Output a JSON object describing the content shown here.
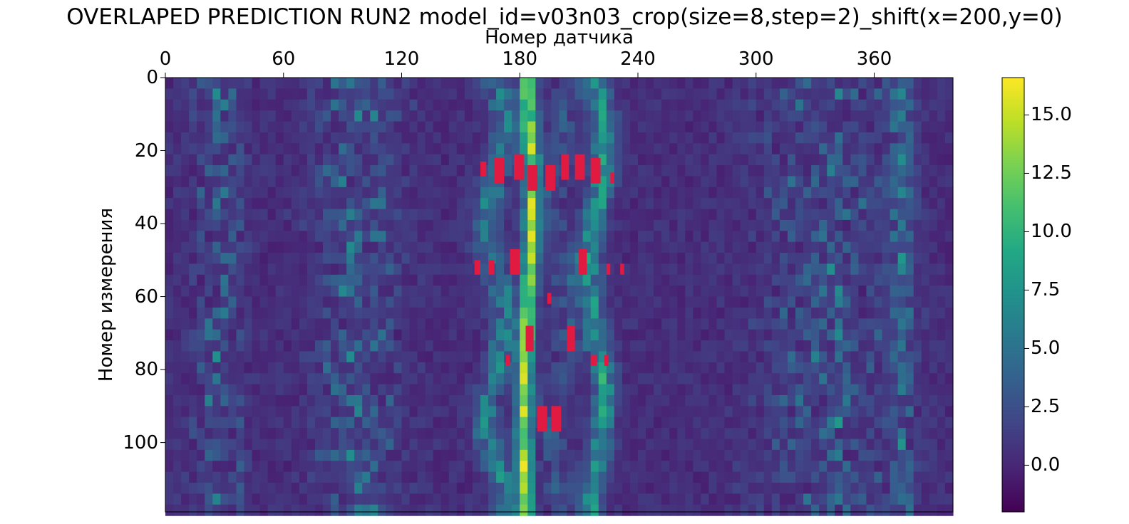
{
  "chart_data": {
    "type": "heatmap",
    "title": "OVERLAPED PREDICTION RUN2 model_id=v03n03_crop(size=8,step=2)_shift(x=200,y=0)",
    "xlabel": "Номер датчика",
    "ylabel": "Номер измерения",
    "x_axis_position": "top",
    "xlim": [
      0,
      400
    ],
    "ylim": [
      119,
      0
    ],
    "xticks": [
      0,
      60,
      120,
      180,
      240,
      300,
      360
    ],
    "yticks": [
      0,
      20,
      40,
      60,
      80,
      100
    ],
    "colorscale": "viridis",
    "colorbar": {
      "range": [
        -2,
        16.6
      ],
      "ticks": [
        "0.0",
        "2.5",
        "5.0",
        "7.5",
        "10.0",
        "12.5",
        "15.0"
      ]
    },
    "grid": false,
    "ridges_description_values": [
      {
        "x_center": 182,
        "peak_value": 16
      },
      {
        "x_center": 218,
        "peak_value": 12
      },
      {
        "x_center": 165,
        "peak_value": 10
      },
      {
        "x_center": 198,
        "peak_value": 8
      }
    ],
    "prediction_color": "#e01a40",
    "predictions": [
      {
        "x": 160,
        "y": 23,
        "w": 3,
        "h": 4
      },
      {
        "x": 167,
        "y": 22,
        "w": 5,
        "h": 7
      },
      {
        "x": 177,
        "y": 21,
        "w": 5,
        "h": 7
      },
      {
        "x": 184,
        "y": 24,
        "w": 5,
        "h": 7
      },
      {
        "x": 193,
        "y": 24,
        "w": 5,
        "h": 7
      },
      {
        "x": 201,
        "y": 21,
        "w": 4,
        "h": 7
      },
      {
        "x": 208,
        "y": 21,
        "w": 5,
        "h": 7
      },
      {
        "x": 216,
        "y": 22,
        "w": 5,
        "h": 7
      },
      {
        "x": 226,
        "y": 26,
        "w": 2,
        "h": 3
      },
      {
        "x": 157,
        "y": 50,
        "w": 3,
        "h": 4
      },
      {
        "x": 164,
        "y": 50,
        "w": 3,
        "h": 4
      },
      {
        "x": 175,
        "y": 47,
        "w": 5,
        "h": 7
      },
      {
        "x": 210,
        "y": 47,
        "w": 4,
        "h": 7
      },
      {
        "x": 224,
        "y": 51,
        "w": 2,
        "h": 3
      },
      {
        "x": 231,
        "y": 51,
        "w": 2,
        "h": 3
      },
      {
        "x": 194,
        "y": 59,
        "w": 2,
        "h": 3
      },
      {
        "x": 183,
        "y": 68,
        "w": 4,
        "h": 7
      },
      {
        "x": 204,
        "y": 68,
        "w": 4,
        "h": 7
      },
      {
        "x": 173,
        "y": 76,
        "w": 2,
        "h": 3
      },
      {
        "x": 216,
        "y": 76,
        "w": 3,
        "h": 3
      },
      {
        "x": 223,
        "y": 76,
        "w": 2,
        "h": 3
      },
      {
        "x": 189,
        "y": 90,
        "w": 5,
        "h": 7
      },
      {
        "x": 196,
        "y": 90,
        "w": 5,
        "h": 7
      }
    ]
  }
}
